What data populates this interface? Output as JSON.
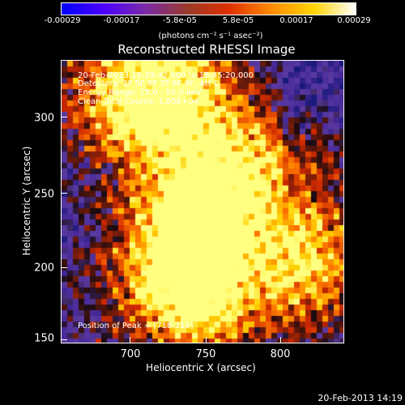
{
  "colorbar": {
    "ticks": [
      "-0.00029",
      "-0.00017",
      "-5.8e-05",
      "5.8e-05",
      "0.00017",
      "0.00029"
    ],
    "unit": "(photons cm⁻² s⁻¹ asec⁻²)",
    "colors": [
      "#0000ff",
      "#4c00ff",
      "#7a2aa6",
      "#9a3a2a",
      "#e03000",
      "#ff8c00",
      "#ffd400",
      "#ffffff"
    ]
  },
  "image": {
    "title": "Reconstructed RHESSI Image",
    "info_lines": [
      "20-Feb-2013 15:39:42.000 to 15:45:20.000",
      "Detectors: 3F 5F 6F 7F 8F 9F, Att 0",
      "Energy Range: 25.0 - 50.0 keV",
      "Clean     Total Counts: 1.85E+04"
    ],
    "peak": "Position of Peak = [718,311]"
  },
  "axes": {
    "xlabel": "Heliocentric X (arcsec)",
    "ylabel": "Heliocentric Y (arcsec)",
    "xticks": [
      "700",
      "750",
      "800"
    ],
    "yticks": [
      "300",
      "250",
      "200",
      "150"
    ]
  },
  "timestamp": "20-Feb-2013 14:19"
}
